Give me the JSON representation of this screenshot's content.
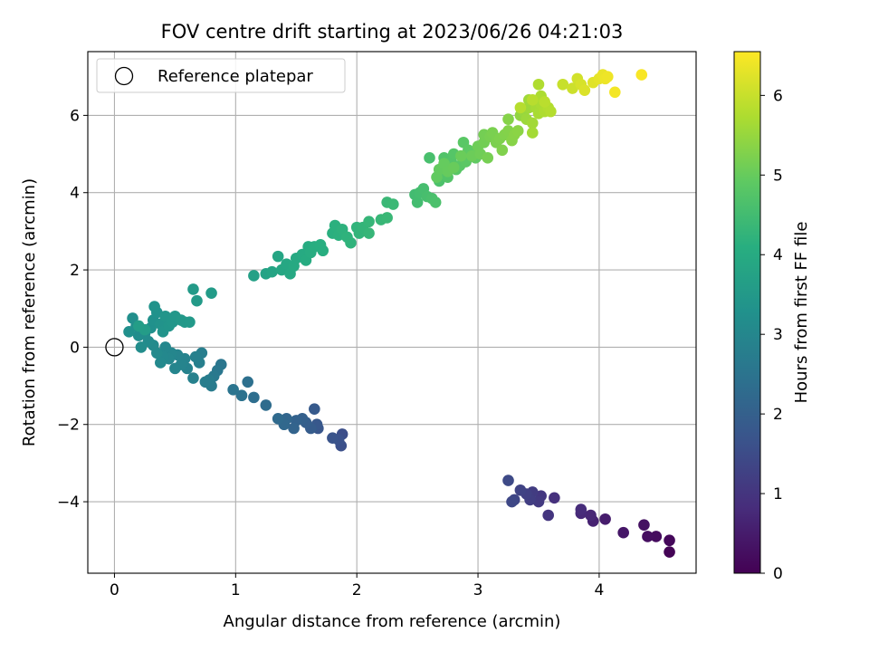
{
  "chart_data": {
    "type": "scatter",
    "title": "FOV centre drift starting at 2023/06/26 04:21:03",
    "xlabel": "Angular distance from reference (arcmin)",
    "ylabel": "Rotation from reference (arcmin)",
    "xlim": [
      -0.22,
      4.8
    ],
    "ylim": [
      -5.85,
      7.65
    ],
    "x_ticks": [
      0,
      1,
      2,
      3,
      4
    ],
    "y_ticks": [
      -4,
      -2,
      0,
      2,
      4,
      6
    ],
    "grid": true,
    "legend": {
      "placement": "top-left",
      "entries": [
        "Reference platepar"
      ]
    },
    "reference_point": {
      "x": 0,
      "y": 0
    },
    "colorbar": {
      "label": "Hours from first FF file",
      "range": [
        0,
        6.55
      ],
      "ticks": [
        0,
        1,
        2,
        3,
        4,
        5,
        6
      ],
      "colormap": "viridis"
    },
    "points": [
      [
        4.58,
        -5.3,
        0.05
      ],
      [
        4.58,
        -5.0,
        0.12
      ],
      [
        4.47,
        -4.9,
        0.2
      ],
      [
        4.4,
        -4.9,
        0.25
      ],
      [
        4.37,
        -4.6,
        0.3
      ],
      [
        4.2,
        -4.8,
        0.4
      ],
      [
        4.05,
        -4.45,
        0.5
      ],
      [
        3.95,
        -4.5,
        0.6
      ],
      [
        3.93,
        -4.35,
        0.7
      ],
      [
        3.85,
        -4.3,
        0.75
      ],
      [
        3.85,
        -4.2,
        0.8
      ],
      [
        3.63,
        -3.9,
        0.9
      ],
      [
        3.58,
        -4.35,
        1.0
      ],
      [
        3.52,
        -3.85,
        1.05
      ],
      [
        3.5,
        -4.0,
        1.1
      ],
      [
        3.45,
        -3.75,
        1.15
      ],
      [
        3.43,
        -3.95,
        1.2
      ],
      [
        3.4,
        -3.8,
        1.25
      ],
      [
        3.35,
        -3.7,
        1.3
      ],
      [
        3.3,
        -3.95,
        1.35
      ],
      [
        3.28,
        -4.0,
        1.4
      ],
      [
        3.25,
        -3.45,
        1.45
      ],
      [
        1.88,
        -2.25,
        1.55
      ],
      [
        1.87,
        -2.55,
        1.6
      ],
      [
        1.85,
        -2.4,
        1.65
      ],
      [
        1.8,
        -2.35,
        1.7
      ],
      [
        1.68,
        -2.1,
        1.75
      ],
      [
        1.67,
        -2.0,
        1.8
      ],
      [
        1.65,
        -1.6,
        1.85
      ],
      [
        1.62,
        -2.1,
        1.9
      ],
      [
        1.58,
        -1.95,
        1.95
      ],
      [
        1.55,
        -1.85,
        2.0
      ],
      [
        1.5,
        -1.9,
        2.05
      ],
      [
        1.48,
        -2.1,
        2.1
      ],
      [
        1.42,
        -1.85,
        2.15
      ],
      [
        1.4,
        -2.0,
        2.2
      ],
      [
        1.35,
        -1.85,
        2.25
      ],
      [
        1.25,
        -1.5,
        2.3
      ],
      [
        1.15,
        -1.3,
        2.35
      ],
      [
        1.1,
        -0.9,
        2.4
      ],
      [
        1.05,
        -1.25,
        2.45
      ],
      [
        0.98,
        -1.1,
        2.5
      ],
      [
        0.88,
        -0.45,
        2.55
      ],
      [
        0.85,
        -0.6,
        2.6
      ],
      [
        0.82,
        -0.75,
        2.65
      ],
      [
        0.8,
        -1.0,
        2.7
      ],
      [
        0.78,
        -0.85,
        2.72
      ],
      [
        0.75,
        -0.9,
        2.75
      ],
      [
        0.72,
        -0.15,
        2.78
      ],
      [
        0.7,
        -0.4,
        2.8
      ],
      [
        0.67,
        -0.25,
        2.82
      ],
      [
        0.65,
        -0.8,
        2.85
      ],
      [
        0.6,
        -0.55,
        2.88
      ],
      [
        0.58,
        -0.3,
        2.9
      ],
      [
        0.55,
        -0.45,
        2.92
      ],
      [
        0.52,
        -0.2,
        2.94
      ],
      [
        0.5,
        -0.55,
        2.96
      ],
      [
        0.47,
        -0.15,
        2.98
      ],
      [
        0.45,
        -0.3,
        3.0
      ],
      [
        0.42,
        0.0,
        3.02
      ],
      [
        0.4,
        -0.25,
        3.04
      ],
      [
        0.38,
        -0.4,
        3.06
      ],
      [
        0.35,
        -0.15,
        3.08
      ],
      [
        0.32,
        0.05,
        3.1
      ],
      [
        0.28,
        0.15,
        3.12
      ],
      [
        0.25,
        0.35,
        3.14
      ],
      [
        0.22,
        0.0,
        3.16
      ],
      [
        0.2,
        0.3,
        3.18
      ],
      [
        0.18,
        0.55,
        3.2
      ],
      [
        0.15,
        0.75,
        3.22
      ],
      [
        0.12,
        0.4,
        3.24
      ],
      [
        0.3,
        0.5,
        3.26
      ],
      [
        0.32,
        0.7,
        3.28
      ],
      [
        0.35,
        0.9,
        3.3
      ],
      [
        0.33,
        1.05,
        3.32
      ],
      [
        0.38,
        0.6,
        3.34
      ],
      [
        0.4,
        0.4,
        3.36
      ],
      [
        0.42,
        0.8,
        3.38
      ],
      [
        0.45,
        0.55,
        3.4
      ],
      [
        0.48,
        0.65,
        3.42
      ],
      [
        0.5,
        0.8,
        3.44
      ],
      [
        0.55,
        0.7,
        3.46
      ],
      [
        0.58,
        0.65,
        3.48
      ],
      [
        0.62,
        0.65,
        3.5
      ],
      [
        0.68,
        1.2,
        3.52
      ],
      [
        0.65,
        1.5,
        3.54
      ],
      [
        0.8,
        1.4,
        3.56
      ],
      [
        0.25,
        0.45,
        3.58
      ],
      [
        0.2,
        0.55,
        3.6
      ],
      [
        1.15,
        1.85,
        3.7
      ],
      [
        1.25,
        1.9,
        3.75
      ],
      [
        1.3,
        1.95,
        3.8
      ],
      [
        1.35,
        2.35,
        3.85
      ],
      [
        1.38,
        2.0,
        3.88
      ],
      [
        1.42,
        2.15,
        3.9
      ],
      [
        1.45,
        1.9,
        3.92
      ],
      [
        1.48,
        2.1,
        3.94
      ],
      [
        1.5,
        2.3,
        3.96
      ],
      [
        1.55,
        2.4,
        3.98
      ],
      [
        1.58,
        2.25,
        4.0
      ],
      [
        1.6,
        2.6,
        4.02
      ],
      [
        1.62,
        2.45,
        4.04
      ],
      [
        1.65,
        2.6,
        4.06
      ],
      [
        1.7,
        2.65,
        4.08
      ],
      [
        1.72,
        2.5,
        4.1
      ],
      [
        1.8,
        2.95,
        4.12
      ],
      [
        1.82,
        3.15,
        4.14
      ],
      [
        1.85,
        2.9,
        4.16
      ],
      [
        1.88,
        3.05,
        4.18
      ],
      [
        1.92,
        2.85,
        4.2
      ],
      [
        1.95,
        2.7,
        4.22
      ],
      [
        2.0,
        3.1,
        4.24
      ],
      [
        2.02,
        2.95,
        4.26
      ],
      [
        2.05,
        3.1,
        4.28
      ],
      [
        2.1,
        3.25,
        4.3
      ],
      [
        2.1,
        2.95,
        4.32
      ],
      [
        2.2,
        3.3,
        4.34
      ],
      [
        2.25,
        3.35,
        4.36
      ],
      [
        2.25,
        3.75,
        4.38
      ],
      [
        2.3,
        3.7,
        4.4
      ],
      [
        2.48,
        3.95,
        4.5
      ],
      [
        2.5,
        3.75,
        4.52
      ],
      [
        2.52,
        4.0,
        4.54
      ],
      [
        2.55,
        4.1,
        4.56
      ],
      [
        2.58,
        3.9,
        4.58
      ],
      [
        2.6,
        4.9,
        4.6
      ],
      [
        2.62,
        3.85,
        4.62
      ],
      [
        2.65,
        3.75,
        4.64
      ],
      [
        2.68,
        4.3,
        4.66
      ],
      [
        2.7,
        4.5,
        4.68
      ],
      [
        2.7,
        4.6,
        4.7
      ],
      [
        2.72,
        4.9,
        4.72
      ],
      [
        2.75,
        4.4,
        4.74
      ],
      [
        2.78,
        4.8,
        4.76
      ],
      [
        2.8,
        5.0,
        4.78
      ],
      [
        2.82,
        4.6,
        4.8
      ],
      [
        2.85,
        4.7,
        4.82
      ],
      [
        2.88,
        5.3,
        4.84
      ],
      [
        2.9,
        4.8,
        4.86
      ],
      [
        2.92,
        5.1,
        4.88
      ],
      [
        2.95,
        5.05,
        4.9
      ],
      [
        2.98,
        4.9,
        4.92
      ],
      [
        2.66,
        4.4,
        4.94
      ],
      [
        2.68,
        4.6,
        4.96
      ],
      [
        2.72,
        4.75,
        4.98
      ],
      [
        2.75,
        4.55,
        5.0
      ],
      [
        2.8,
        4.65,
        5.02
      ],
      [
        2.86,
        4.95,
        5.04
      ],
      [
        2.95,
        4.95,
        5.06
      ],
      [
        3.0,
        5.2,
        5.08
      ],
      [
        3.02,
        5.0,
        5.1
      ],
      [
        3.05,
        5.3,
        5.12
      ],
      [
        3.05,
        5.5,
        5.14
      ],
      [
        3.08,
        4.9,
        5.16
      ],
      [
        3.1,
        5.45,
        5.18
      ],
      [
        3.12,
        5.55,
        5.2
      ],
      [
        3.15,
        5.3,
        5.22
      ],
      [
        3.18,
        5.4,
        5.24
      ],
      [
        3.2,
        5.1,
        5.26
      ],
      [
        3.22,
        5.5,
        5.28
      ],
      [
        3.25,
        5.6,
        5.3
      ],
      [
        3.25,
        5.9,
        5.32
      ],
      [
        3.28,
        5.35,
        5.34
      ],
      [
        3.3,
        5.5,
        5.36
      ],
      [
        3.33,
        5.6,
        5.38
      ],
      [
        3.35,
        6.0,
        5.45
      ],
      [
        3.38,
        6.1,
        5.5
      ],
      [
        3.4,
        5.9,
        5.55
      ],
      [
        3.42,
        6.2,
        5.58
      ],
      [
        3.42,
        6.4,
        5.6
      ],
      [
        3.45,
        5.8,
        5.62
      ],
      [
        3.45,
        5.55,
        5.64
      ],
      [
        3.48,
        6.2,
        5.66
      ],
      [
        3.5,
        6.05,
        5.68
      ],
      [
        3.52,
        6.3,
        5.7
      ],
      [
        3.52,
        6.5,
        5.72
      ],
      [
        3.55,
        6.1,
        5.74
      ],
      [
        3.5,
        6.8,
        5.76
      ],
      [
        3.58,
        6.2,
        5.78
      ],
      [
        3.6,
        6.1,
        5.8
      ],
      [
        3.35,
        6.2,
        5.82
      ],
      [
        3.45,
        6.4,
        5.84
      ],
      [
        3.55,
        6.35,
        5.86
      ],
      [
        3.7,
        6.8,
        6.0
      ],
      [
        3.78,
        6.7,
        6.05
      ],
      [
        3.82,
        6.95,
        6.1
      ],
      [
        3.85,
        6.8,
        6.15
      ],
      [
        3.88,
        6.65,
        6.2
      ],
      [
        3.95,
        6.85,
        6.25
      ],
      [
        4.0,
        6.95,
        6.3
      ],
      [
        4.03,
        7.05,
        6.35
      ],
      [
        4.05,
        6.95,
        6.38
      ],
      [
        4.07,
        7.0,
        6.4
      ],
      [
        4.13,
        6.6,
        6.45
      ],
      [
        4.35,
        7.05,
        6.5
      ]
    ]
  }
}
